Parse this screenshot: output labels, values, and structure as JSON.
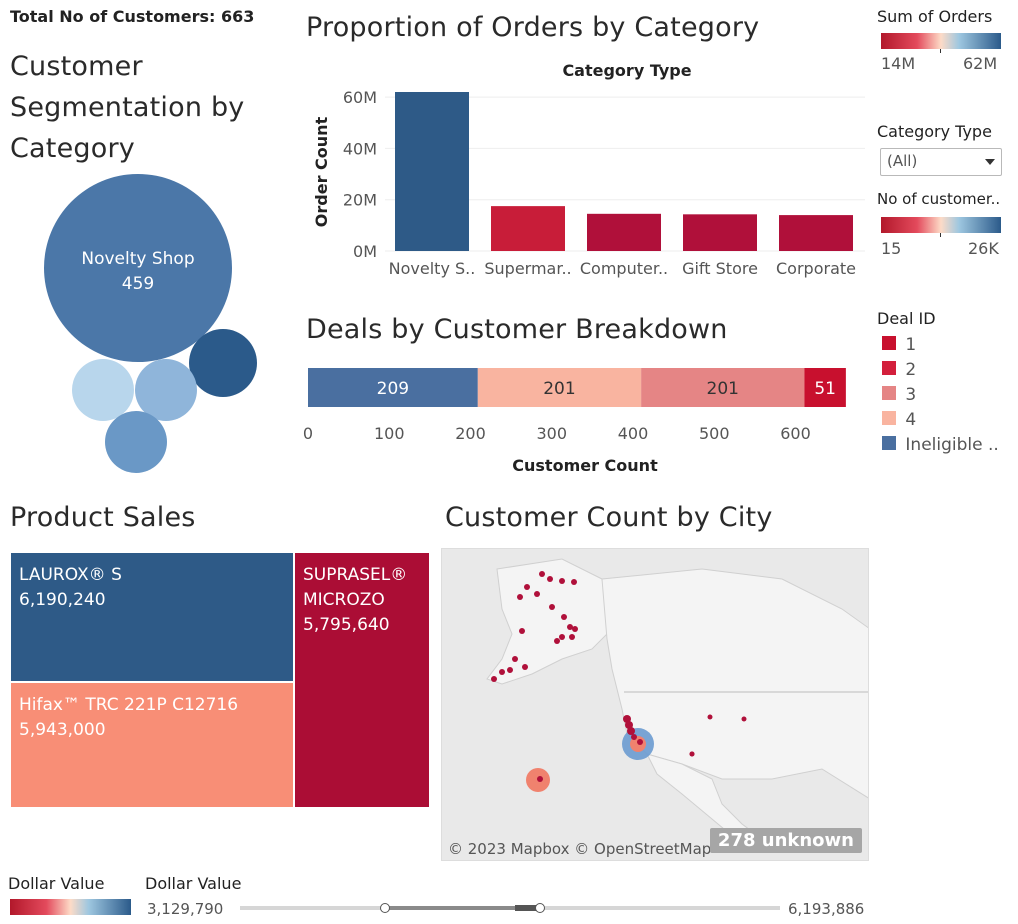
{
  "header": {
    "total_customers": "Total No of Customers: 663"
  },
  "segmentation": {
    "title_line1": "Customer",
    "title_line2": "Segmentation by",
    "title_line3": "Category",
    "main_bubble_label": "Novelty Shop",
    "main_bubble_value": "459"
  },
  "orders_chart": {
    "title": "Proportion of Orders by Category"
  },
  "sum_orders_legend": {
    "title": "Sum of  Orders",
    "min_label": "14M",
    "max_label": "62M"
  },
  "category_filter": {
    "title": "Category Type",
    "selected": "(All)"
  },
  "customers_legend": {
    "title": "No of customer..",
    "min_label": "15",
    "max_label": "26K"
  },
  "deals_chart": {
    "title": "Deals by Customer Breakdown"
  },
  "deal_legend": {
    "title": "Deal ID",
    "items": [
      {
        "label": "1",
        "color": "#c8102e"
      },
      {
        "label": "2",
        "color": "#d31f3c"
      },
      {
        "label": "3",
        "color": "#e58585"
      },
      {
        "label": "4",
        "color": "#f9b4a0"
      },
      {
        "label": "Ineligible ..",
        "color": "#4a6fa0"
      }
    ]
  },
  "product_sales": {
    "title": "Product Sales",
    "cells": [
      {
        "name": "LAUROX® S",
        "value": "6,190,240",
        "color": "#2e5a87"
      },
      {
        "name": "Hifax™ TRC 221P C12716",
        "value": "5,943,000",
        "color": "#f88e76"
      },
      {
        "name_line1": "SUPRASEL®",
        "name_line2": "MICROZO",
        "value": "5,795,640",
        "color": "#ab0d35"
      }
    ]
  },
  "map": {
    "title": "Customer Count by City",
    "attribution": "© 2023 Mapbox © OpenStreetMap",
    "unknown": "278 unknown"
  },
  "dollar_filter": {
    "legend_title": "Dollar Value",
    "slider_title": "Dollar Value",
    "min_value": "3,129,790",
    "max_value": "6,193,886"
  },
  "chart_data": [
    {
      "type": "bar",
      "title": "Proportion of Orders by Category",
      "xlabel": "Category Type",
      "ylabel": "Order Count",
      "categories": [
        "Novelty S..",
        "Supermar..",
        "Computer..",
        "Gift Store",
        "Corporate"
      ],
      "values": [
        62000000,
        17500000,
        14500000,
        14300000,
        14000000
      ],
      "colors": [
        "#2e5a87",
        "#c81d39",
        "#b0103a",
        "#b0103a",
        "#b0103a"
      ],
      "yticks": [
        "0M",
        "20M",
        "40M",
        "60M"
      ],
      "ylim": [
        0,
        62000000
      ]
    },
    {
      "type": "bar",
      "orientation": "horizontal-stacked",
      "title": "Deals by Customer Breakdown",
      "xlabel": "Customer Count",
      "series": [
        {
          "name": "Ineligible ..",
          "value": 209,
          "color": "#4a6fa0"
        },
        {
          "name": "4",
          "value": 201,
          "color": "#f9b4a0"
        },
        {
          "name": "3",
          "value": 201,
          "color": "#e58585"
        },
        {
          "name": "1",
          "value": 51,
          "color": "#c8102e"
        }
      ],
      "xticks": [
        "0",
        "100",
        "200",
        "300",
        "400",
        "500",
        "600"
      ],
      "xlim": [
        0,
        663
      ]
    },
    {
      "type": "scatter",
      "title": "Customer Segmentation by Category",
      "bubbles": [
        {
          "label": "Novelty Shop",
          "value": 459,
          "color": "#4b77a8"
        },
        {
          "value": 51,
          "color": "#2b5a8a"
        },
        {
          "value": 45,
          "color": "#b8d6ec"
        },
        {
          "value": 42,
          "color": "#8fb5da"
        },
        {
          "value": 40,
          "color": "#6a98c6"
        }
      ]
    }
  ]
}
